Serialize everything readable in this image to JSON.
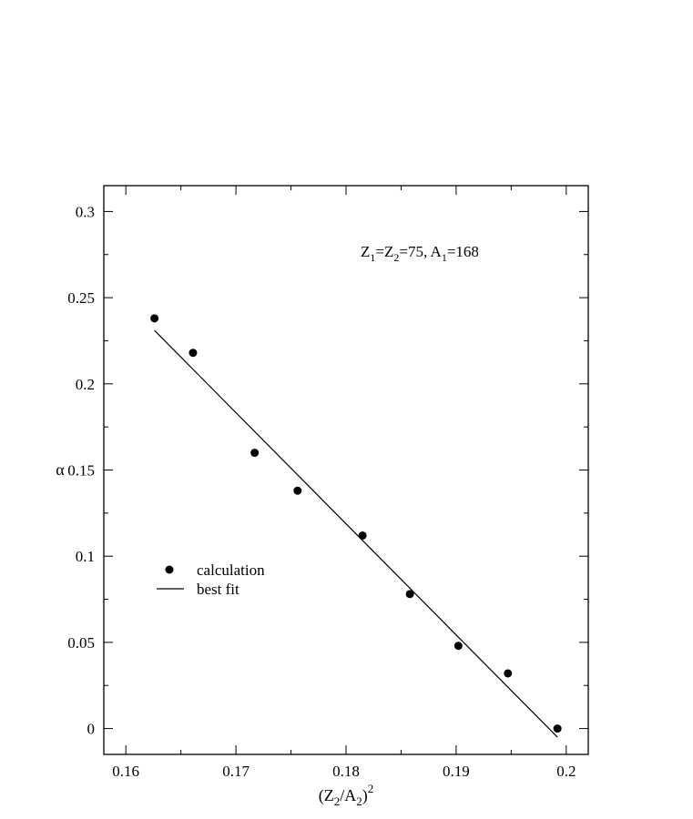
{
  "chart_data": {
    "type": "scatter",
    "title": "",
    "xlabel": {
      "text": "(Z",
      "sub1": "2",
      "mid": "/A",
      "sub2": "2",
      "close": ")",
      "sup": "2"
    },
    "ylabel": "α",
    "xlim": [
      0.158,
      0.202
    ],
    "ylim": [
      -0.015,
      0.315
    ],
    "grid": false,
    "x_ticks": [
      0.16,
      0.17,
      0.18,
      0.19,
      0.2
    ],
    "x_tick_labels": [
      "0.16",
      "0.17",
      "0.18",
      "0.19",
      "0.2"
    ],
    "x_minor_ticks": [
      0.165,
      0.175,
      0.185,
      0.195
    ],
    "y_ticks": [
      0,
      0.05,
      0.1,
      0.15,
      0.2,
      0.25,
      0.3
    ],
    "y_tick_labels": [
      "0",
      "0.05",
      "0.1",
      "0.15",
      "0.2",
      "0.25",
      "0.3"
    ],
    "y_minor_ticks": [
      0.025,
      0.075,
      0.125,
      0.175,
      0.225,
      0.275
    ],
    "annotation": {
      "pre": "Z",
      "sub1": "1",
      "mid1": "=Z",
      "sub2": "2",
      "mid2": "=75, A",
      "sub3": "1",
      "post": "=168"
    },
    "legend_position": "left-middle",
    "series": [
      {
        "name": "calculation",
        "kind": "points",
        "color": "#000000",
        "x": [
          0.1626,
          0.1661,
          0.1717,
          0.1756,
          0.1815,
          0.1858,
          0.1902,
          0.1947,
          0.1992
        ],
        "y": [
          0.238,
          0.218,
          0.16,
          0.138,
          0.112,
          0.078,
          0.048,
          0.032,
          0.0
        ]
      },
      {
        "name": "best fit",
        "kind": "line",
        "color": "#000000",
        "x": [
          0.1626,
          0.1992
        ],
        "y": [
          0.231,
          -0.005
        ]
      }
    ]
  }
}
